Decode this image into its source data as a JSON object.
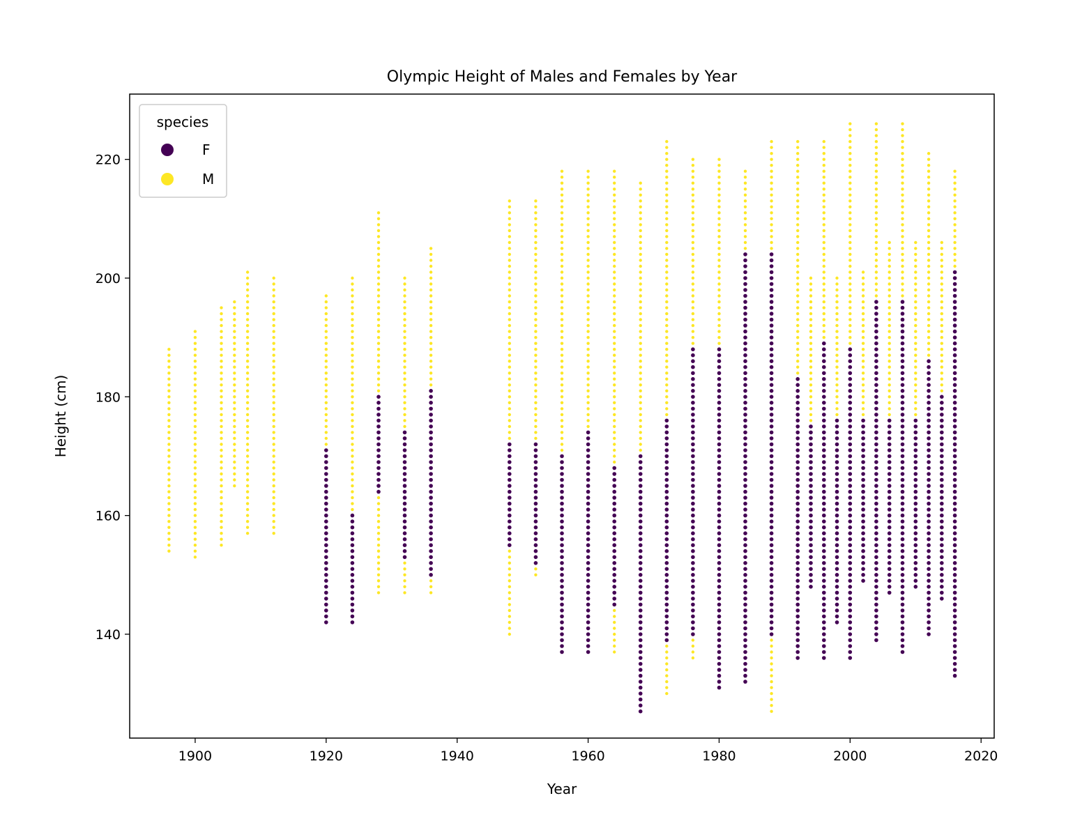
{
  "chart_data": {
    "type": "scatter",
    "title": "Olympic Height of Males and Females by Year",
    "xlabel": "Year",
    "ylabel": "Height (cm)",
    "xlim": [
      1890,
      2022
    ],
    "ylim": [
      122.5,
      231
    ],
    "xticks": [
      1900,
      1920,
      1940,
      1960,
      1980,
      2000,
      2020
    ],
    "yticks": [
      140,
      160,
      180,
      200,
      220
    ],
    "grid": false,
    "legend": {
      "title": "species",
      "placement": "upper-left",
      "entries": [
        {
          "label": "F",
          "color": "#440154"
        },
        {
          "label": "M",
          "color": "#fde725"
        }
      ]
    },
    "series": [
      {
        "name": "M",
        "color": "#fde725",
        "ranges": [
          {
            "year": 1896,
            "min": 154,
            "max": 188
          },
          {
            "year": 1900,
            "min": 153,
            "max": 191
          },
          {
            "year": 1904,
            "min": 155,
            "max": 195
          },
          {
            "year": 1906,
            "min": 165,
            "max": 196
          },
          {
            "year": 1908,
            "min": 157,
            "max": 201
          },
          {
            "year": 1912,
            "min": 157,
            "max": 200
          },
          {
            "year": 1920,
            "min": 148,
            "max": 197
          },
          {
            "year": 1924,
            "min": 152,
            "max": 200
          },
          {
            "year": 1928,
            "min": 147,
            "max": 211
          },
          {
            "year": 1932,
            "min": 147,
            "max": 200
          },
          {
            "year": 1936,
            "min": 147,
            "max": 205
          },
          {
            "year": 1948,
            "min": 140,
            "max": 213
          },
          {
            "year": 1952,
            "min": 150,
            "max": 213
          },
          {
            "year": 1956,
            "min": 153,
            "max": 218
          },
          {
            "year": 1960,
            "min": 146,
            "max": 218
          },
          {
            "year": 1964,
            "min": 137,
            "max": 218
          },
          {
            "year": 1968,
            "min": 133,
            "max": 216
          },
          {
            "year": 1972,
            "min": 130,
            "max": 223
          },
          {
            "year": 1976,
            "min": 136,
            "max": 220
          },
          {
            "year": 1980,
            "min": 140,
            "max": 220
          },
          {
            "year": 1984,
            "min": 135,
            "max": 218
          },
          {
            "year": 1988,
            "min": 127,
            "max": 223
          },
          {
            "year": 1992,
            "min": 140,
            "max": 223
          },
          {
            "year": 1994,
            "min": 150,
            "max": 200
          },
          {
            "year": 1996,
            "min": 150,
            "max": 223
          },
          {
            "year": 1998,
            "min": 148,
            "max": 200
          },
          {
            "year": 2000,
            "min": 150,
            "max": 226
          },
          {
            "year": 2002,
            "min": 150,
            "max": 201
          },
          {
            "year": 2004,
            "min": 140,
            "max": 226
          },
          {
            "year": 2006,
            "min": 148,
            "max": 206
          },
          {
            "year": 2008,
            "min": 140,
            "max": 226
          },
          {
            "year": 2010,
            "min": 150,
            "max": 206
          },
          {
            "year": 2012,
            "min": 140,
            "max": 221
          },
          {
            "year": 2014,
            "min": 150,
            "max": 206
          },
          {
            "year": 2016,
            "min": 140,
            "max": 218
          }
        ]
      },
      {
        "name": "F",
        "color": "#440154",
        "ranges": [
          {
            "year": 1920,
            "min": 142,
            "max": 171
          },
          {
            "year": 1924,
            "min": 142,
            "max": 160
          },
          {
            "year": 1928,
            "min": 164,
            "max": 180
          },
          {
            "year": 1932,
            "min": 153,
            "max": 174
          },
          {
            "year": 1936,
            "min": 150,
            "max": 181
          },
          {
            "year": 1948,
            "min": 155,
            "max": 172
          },
          {
            "year": 1952,
            "min": 152,
            "max": 172
          },
          {
            "year": 1956,
            "min": 137,
            "max": 170
          },
          {
            "year": 1960,
            "min": 137,
            "max": 174
          },
          {
            "year": 1964,
            "min": 145,
            "max": 168
          },
          {
            "year": 1968,
            "min": 127,
            "max": 170
          },
          {
            "year": 1972,
            "min": 139,
            "max": 176
          },
          {
            "year": 1976,
            "min": 140,
            "max": 188
          },
          {
            "year": 1980,
            "min": 131,
            "max": 188
          },
          {
            "year": 1984,
            "min": 132,
            "max": 204
          },
          {
            "year": 1988,
            "min": 140,
            "max": 204
          },
          {
            "year": 1992,
            "min": 136,
            "max": 183
          },
          {
            "year": 1994,
            "min": 148,
            "max": 175
          },
          {
            "year": 1996,
            "min": 136,
            "max": 189
          },
          {
            "year": 1998,
            "min": 142,
            "max": 176
          },
          {
            "year": 2000,
            "min": 136,
            "max": 188
          },
          {
            "year": 2002,
            "min": 149,
            "max": 176
          },
          {
            "year": 2004,
            "min": 139,
            "max": 196
          },
          {
            "year": 2006,
            "min": 147,
            "max": 176
          },
          {
            "year": 2008,
            "min": 137,
            "max": 196
          },
          {
            "year": 2010,
            "min": 148,
            "max": 176
          },
          {
            "year": 2012,
            "min": 140,
            "max": 186
          },
          {
            "year": 2014,
            "min": 146,
            "max": 180
          },
          {
            "year": 2016,
            "min": 133,
            "max": 201
          }
        ]
      }
    ]
  }
}
